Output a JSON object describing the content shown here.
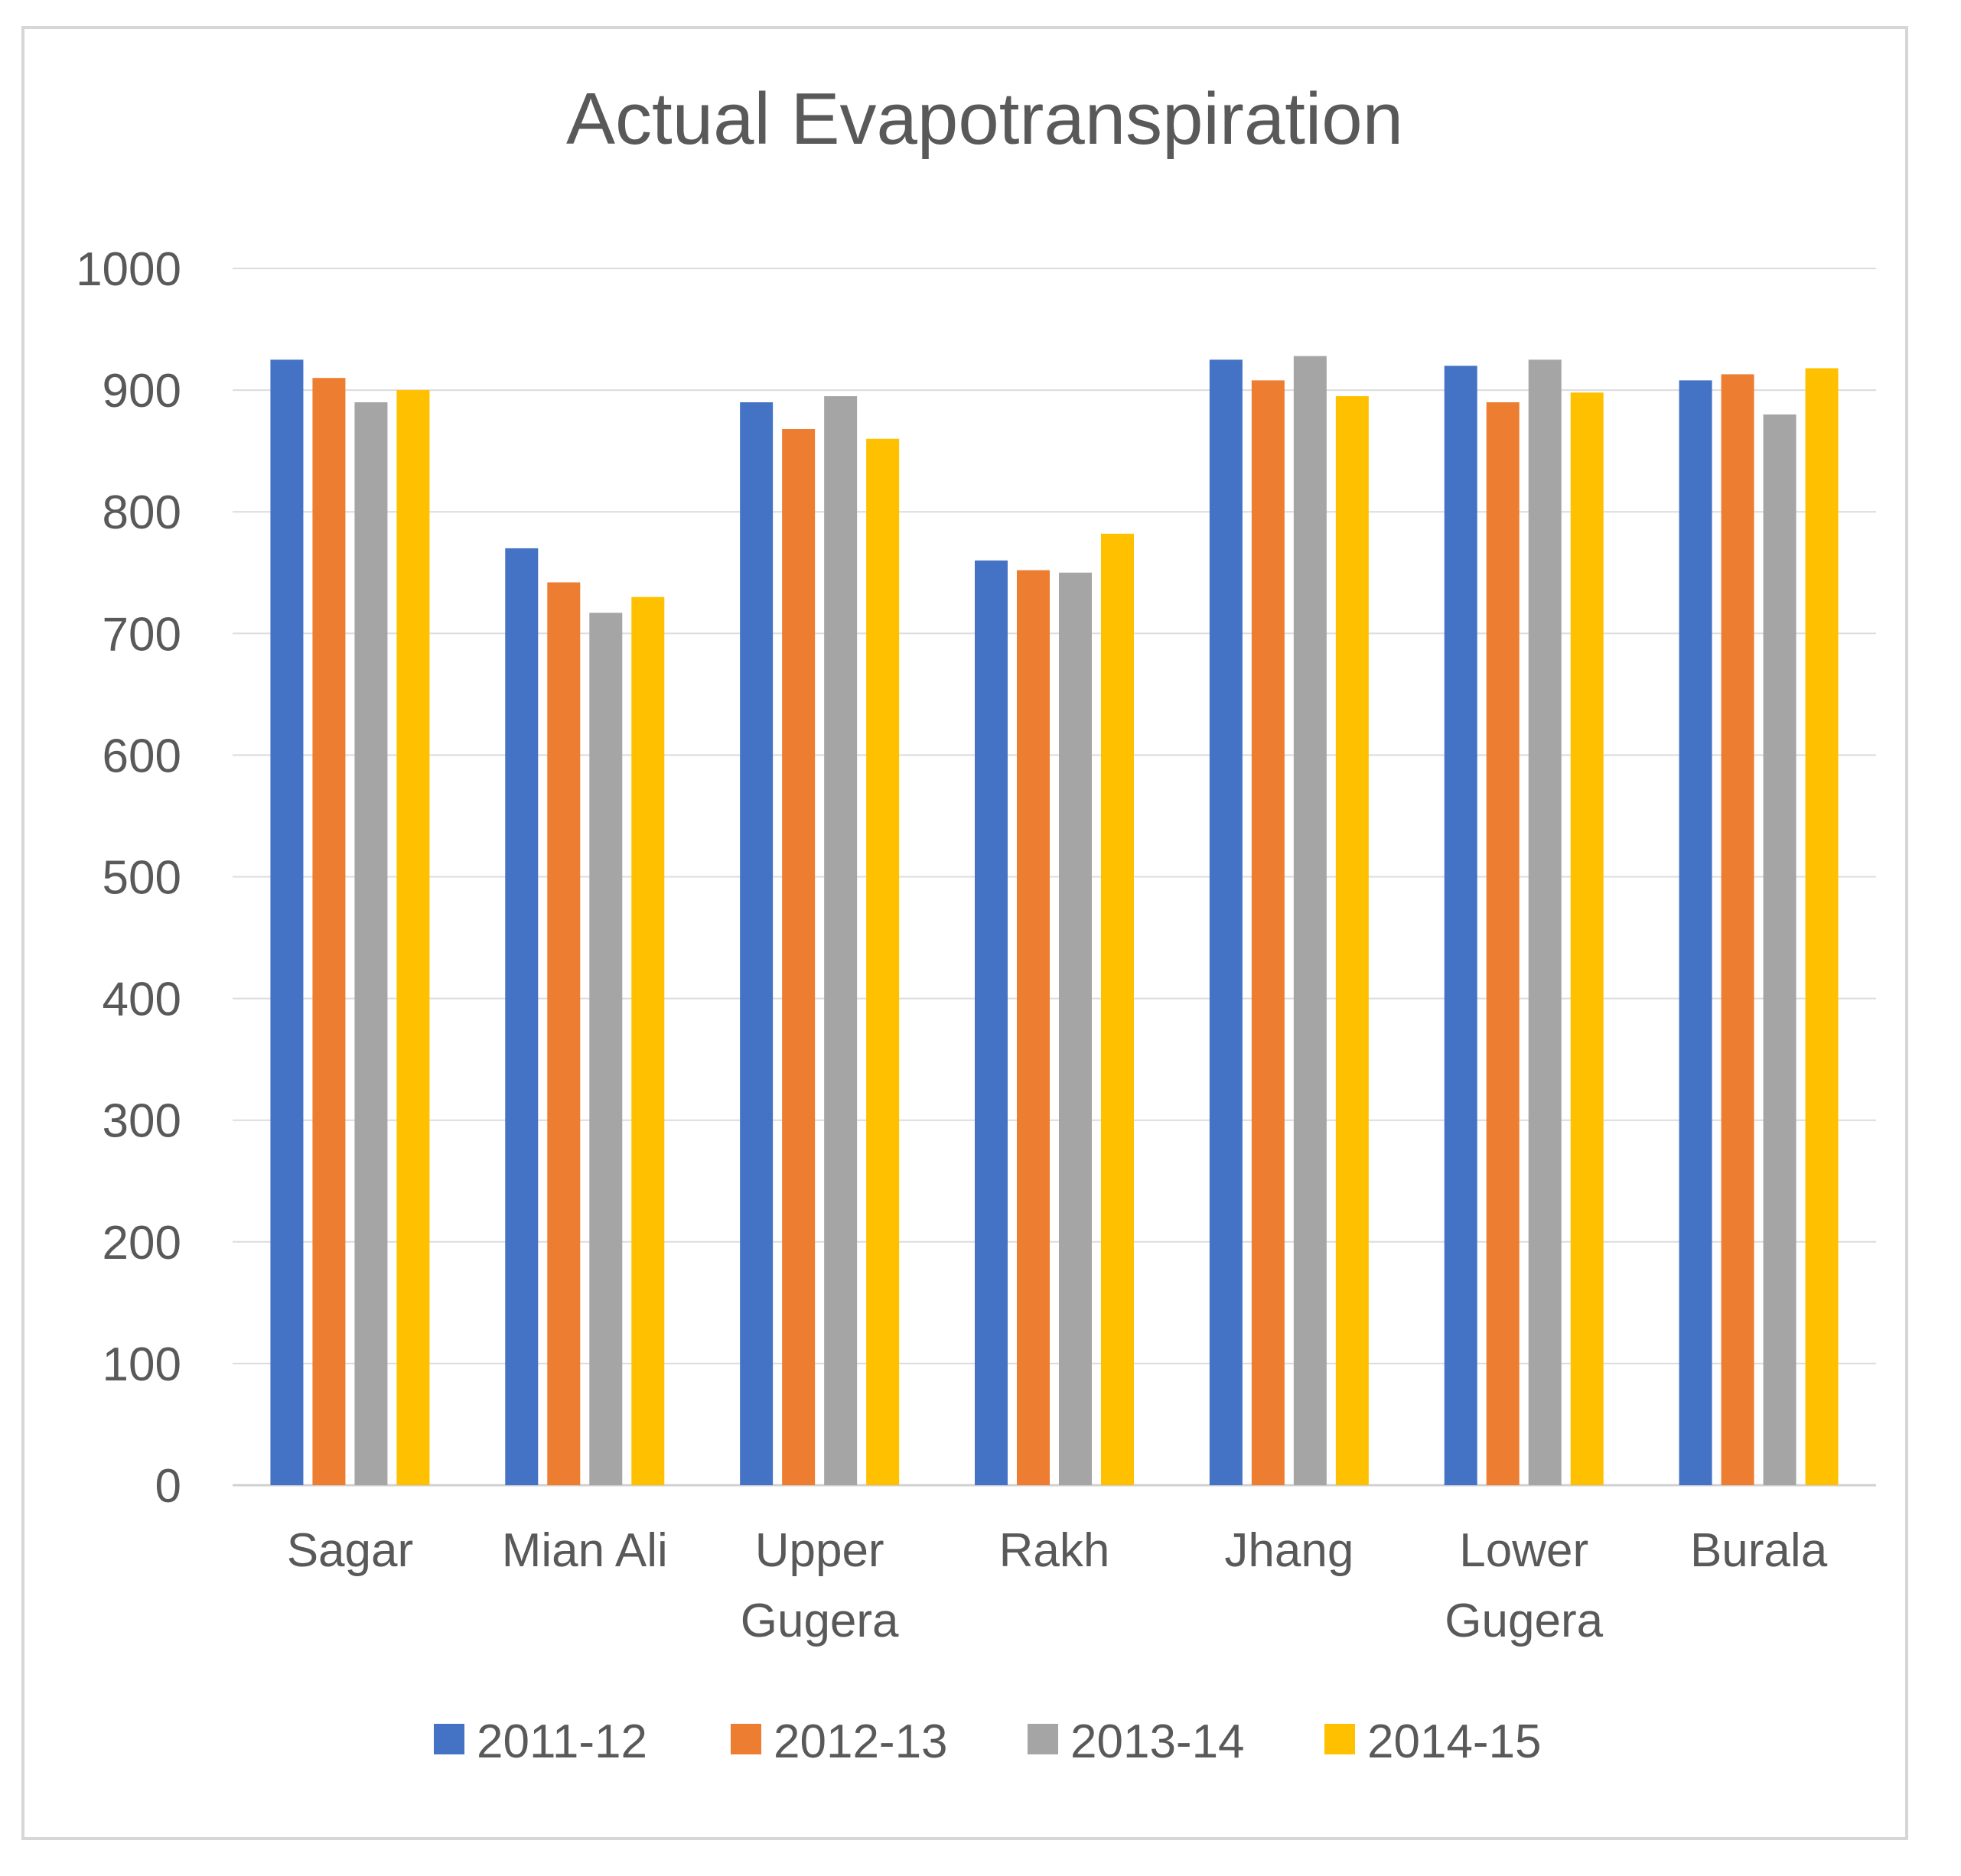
{
  "chart_data": {
    "type": "bar",
    "title": "Actual Evapotranspiration",
    "xlabel": "",
    "ylabel": "",
    "ylim": [
      0,
      1000
    ],
    "y_ticks": [
      "0",
      "100",
      "200",
      "300",
      "400",
      "500",
      "600",
      "700",
      "800",
      "900",
      "1000"
    ],
    "grid": true,
    "legend_position": "bottom",
    "categories": [
      "Sagar",
      "Mian Ali",
      "Upper Gugera",
      "Rakh",
      "Jhang",
      "Lower Gugera",
      "Burala"
    ],
    "series": [
      {
        "name": "2011-12",
        "color": "#4472c4",
        "values": [
          925,
          770,
          890,
          760,
          925,
          920,
          908
        ]
      },
      {
        "name": "2012-13",
        "color": "#ed7d31",
        "values": [
          910,
          742,
          868,
          752,
          908,
          890,
          913
        ]
      },
      {
        "name": "2013-14",
        "color": "#a5a5a5",
        "values": [
          890,
          717,
          895,
          750,
          928,
          925,
          880
        ]
      },
      {
        "name": "2014-15",
        "color": "#ffc000",
        "values": [
          900,
          730,
          860,
          782,
          895,
          898,
          918
        ]
      }
    ]
  }
}
